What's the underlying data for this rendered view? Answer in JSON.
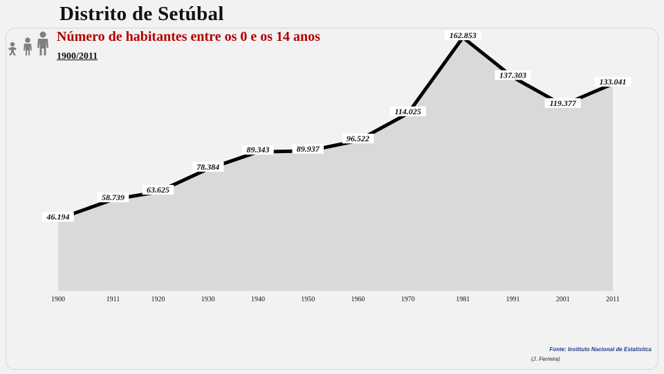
{
  "header": {
    "district": "Distrito de Setúbal",
    "subtitle": "1900/2011"
  },
  "icons": {
    "people": "people-family-icon"
  },
  "colors": {
    "title": "#b30000",
    "line": "#000000",
    "area": "#d9d9d9"
  },
  "footer": {
    "source": "Fonte: Instituto Nacional de Estatística",
    "author": "(J. Ferreira)"
  },
  "chart_data": {
    "type": "area",
    "title": "Número de habitantes entre os 0 e os 14 anos",
    "x": [
      "1900",
      "1911",
      "1920",
      "1930",
      "1940",
      "1950",
      "1960",
      "1970",
      "1981",
      "1991",
      "2001",
      "2011"
    ],
    "values": [
      46194,
      58739,
      63625,
      78384,
      89343,
      89937,
      96522,
      114025,
      162853,
      137303,
      119377,
      133041
    ],
    "data_labels": [
      "46.194",
      "58.739",
      "63.625",
      "78.384",
      "89.343",
      "89.937",
      "96.522",
      "114.025",
      "162.853",
      "137.303",
      "119.377",
      "133.041"
    ],
    "ylim": [
      0,
      170000
    ],
    "grid": false,
    "legend": "none"
  }
}
